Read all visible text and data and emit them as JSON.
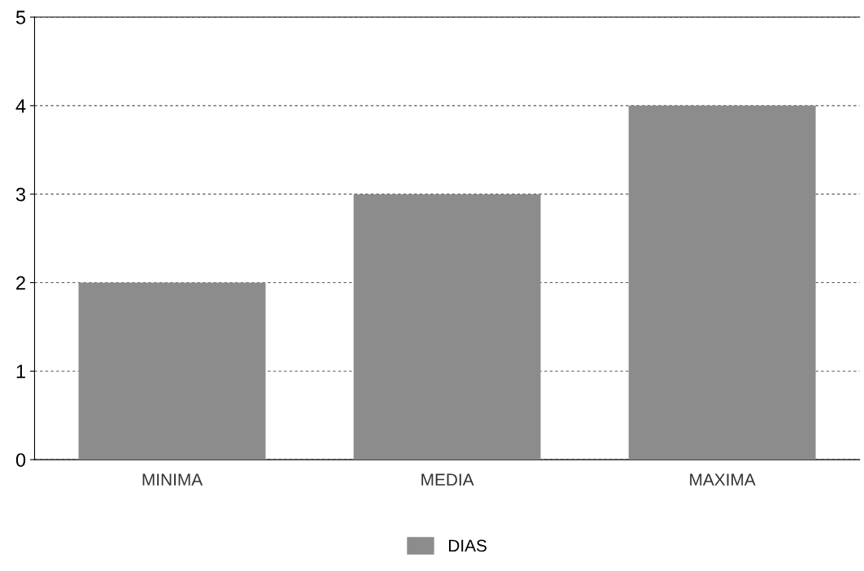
{
  "chart_data": {
    "type": "bar",
    "categories": [
      "MINIMA",
      "MEDIA",
      "MAXIMA"
    ],
    "series": [
      {
        "name": "DIAS",
        "color": "#8c8c8c",
        "values": [
          2,
          3,
          4
        ]
      }
    ],
    "ylim": [
      0,
      5
    ],
    "yticks": [
      0,
      1,
      2,
      3,
      4,
      5
    ],
    "grid": "y",
    "legend": "bottom"
  }
}
